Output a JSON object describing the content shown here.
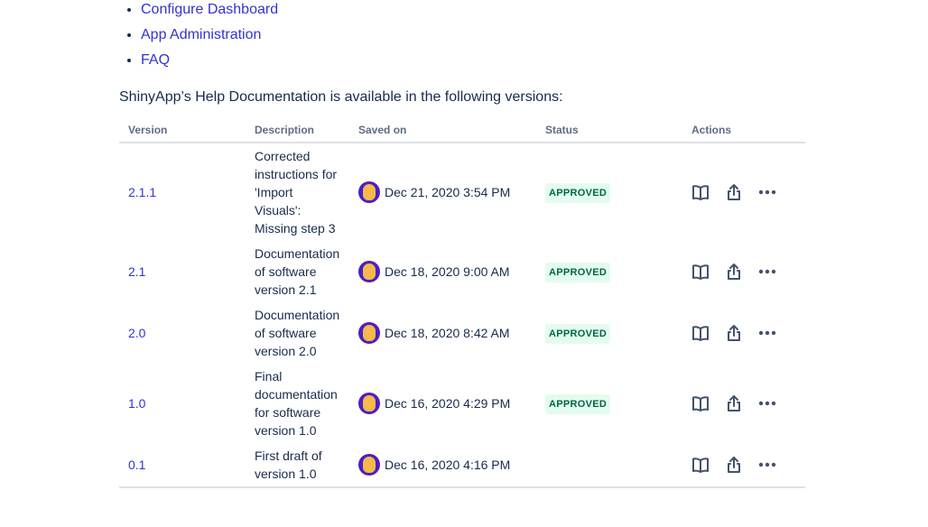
{
  "links": [
    "Configure Dashboard",
    "App Administration",
    "FAQ"
  ],
  "intro": "ShinyApp’s Help Documentation is available in the following versions:",
  "table": {
    "headers": {
      "version": "Version",
      "description": "Description",
      "saved_on": "Saved on",
      "status": "Status",
      "actions": "Actions"
    },
    "rows": [
      {
        "version": "2.1.1",
        "description": [
          "Corrected",
          "instructions for",
          "'Import",
          "Visuals':",
          "Missing step 3"
        ],
        "saved_on": "Dec 21, 2020 3:54 PM",
        "status": "APPROVED"
      },
      {
        "version": "2.1",
        "description": [
          "Documentation",
          "of software",
          "version 2.1"
        ],
        "saved_on": "Dec 18, 2020 9:00 AM",
        "status": "APPROVED"
      },
      {
        "version": "2.0",
        "description": [
          "Documentation",
          "of software",
          "version 2.0"
        ],
        "saved_on": "Dec 18, 2020 8:42 AM",
        "status": "APPROVED"
      },
      {
        "version": "1.0",
        "description": [
          "Final",
          "documentation",
          "for software",
          "version 1.0"
        ],
        "saved_on": "Dec 16, 2020 4:29 PM",
        "status": "APPROVED"
      },
      {
        "version": "0.1",
        "description": [
          "First draft of",
          "version 1.0"
        ],
        "saved_on": "Dec 16, 2020 4:16 PM",
        "status": ""
      }
    ],
    "action_icons": [
      "book-open-icon",
      "share-icon",
      "more-icon"
    ]
  },
  "colors": {
    "link": "#3232d6",
    "badge_bg": "#e3fcef",
    "badge_text": "#006644",
    "avatar_bg": "#4c1fc2"
  }
}
